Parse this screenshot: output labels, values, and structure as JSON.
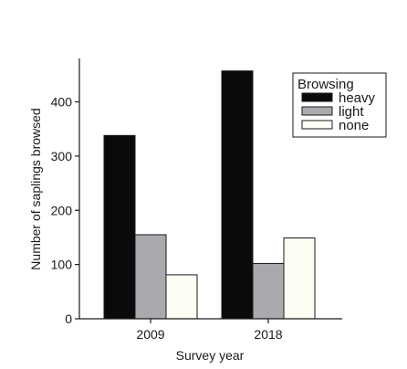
{
  "chart_data": {
    "type": "bar",
    "title": "",
    "xlabel": "Survey year",
    "ylabel": "Number of saplings browsed",
    "categories": [
      "2009",
      "2018"
    ],
    "ylim": [
      0,
      480
    ],
    "yticks": [
      0,
      100,
      200,
      300,
      400
    ],
    "grid": false,
    "legend": {
      "title": "Browsing",
      "position": "top-right"
    },
    "series": [
      {
        "name": "heavy",
        "values": [
          338,
          457
        ],
        "color": "#0a0a0a"
      },
      {
        "name": "light",
        "values": [
          155,
          102
        ],
        "color": "#a9a9ae"
      },
      {
        "name": "none",
        "values": [
          81,
          149
        ],
        "color": "#fdfdf3"
      }
    ]
  }
}
